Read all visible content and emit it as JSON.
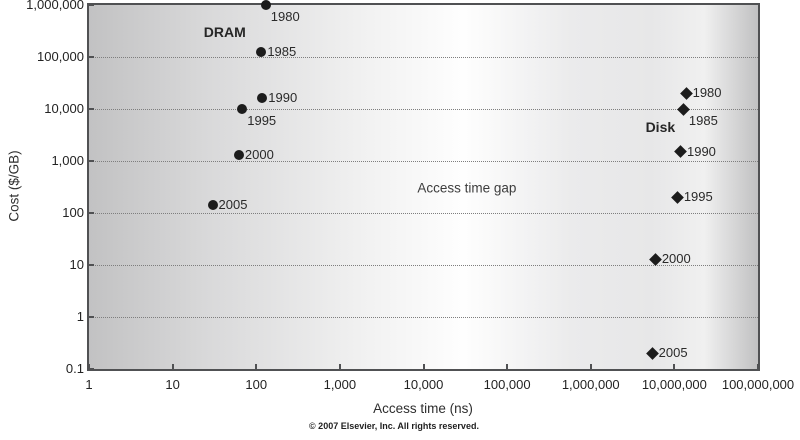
{
  "meta": {
    "footer": "© 2007 Elsevier, Inc. All rights reserved."
  },
  "chart_data": {
    "type": "scatter",
    "xlabel": "Access time (ns)",
    "ylabel": "Cost ($/GB)",
    "x_scale": "log",
    "y_scale": "log",
    "xlim": [
      1,
      100000000
    ],
    "ylim": [
      0.1,
      1000000
    ],
    "grid": "horizontal-dotted",
    "legend_position": "none",
    "x_ticks": [
      {
        "label": "1",
        "value": 1
      },
      {
        "label": "10",
        "value": 10
      },
      {
        "label": "100",
        "value": 100
      },
      {
        "label": "1,000",
        "value": 1000
      },
      {
        "label": "10,000",
        "value": 10000
      },
      {
        "label": "100,000",
        "value": 100000
      },
      {
        "label": "1,000,000",
        "value": 1000000
      },
      {
        "label": "10,000,000",
        "value": 10000000
      },
      {
        "label": "100,000,000",
        "value": 100000000
      }
    ],
    "y_ticks": [
      {
        "label": "1,000,000",
        "value": 1000000
      },
      {
        "label": "100,000",
        "value": 100000
      },
      {
        "label": "10,000",
        "value": 10000
      },
      {
        "label": "1,000",
        "value": 1000
      },
      {
        "label": "100",
        "value": 100
      },
      {
        "label": "10",
        "value": 10
      },
      {
        "label": "1",
        "value": 1
      },
      {
        "label": "0.1",
        "value": 0.1
      }
    ],
    "y_gridlines": [
      100000,
      10000,
      1000,
      100,
      10,
      1
    ],
    "annotations": [
      {
        "id": "access-time-gap",
        "text": "Access time gap",
        "x": 33000,
        "y": 300
      }
    ],
    "series": [
      {
        "name": "DRAM",
        "marker": "circle",
        "color": "#1c1c1c",
        "label": {
          "text": "DRAM",
          "x": 42,
          "y": 300000
        },
        "points": [
          {
            "year": "1980",
            "x": 130,
            "y": 1000000,
            "label_side": "below-right"
          },
          {
            "year": "1985",
            "x": 115,
            "y": 125000,
            "label_side": "right"
          },
          {
            "year": "1990",
            "x": 118,
            "y": 16000,
            "label_side": "right"
          },
          {
            "year": "1995",
            "x": 68,
            "y": 10000,
            "label_side": "below-right"
          },
          {
            "year": "2000",
            "x": 62,
            "y": 1300,
            "label_side": "right"
          },
          {
            "year": "2005",
            "x": 30,
            "y": 140,
            "label_side": "right"
          }
        ]
      },
      {
        "name": "Disk",
        "marker": "diamond",
        "color": "#1c1c1c",
        "label": {
          "text": "Disk",
          "x": 6800000,
          "y": 4500
        },
        "points": [
          {
            "year": "1980",
            "x": 14000000,
            "y": 20000,
            "label_side": "right"
          },
          {
            "year": "1985",
            "x": 13000000,
            "y": 10000,
            "label_side": "below-right"
          },
          {
            "year": "1990",
            "x": 12000000,
            "y": 1500,
            "label_side": "right"
          },
          {
            "year": "1995",
            "x": 11000000,
            "y": 200,
            "label_side": "right"
          },
          {
            "year": "2000",
            "x": 6000000,
            "y": 13,
            "label_side": "right"
          },
          {
            "year": "2005",
            "x": 5500000,
            "y": 0.2,
            "label_side": "right"
          }
        ]
      }
    ]
  }
}
